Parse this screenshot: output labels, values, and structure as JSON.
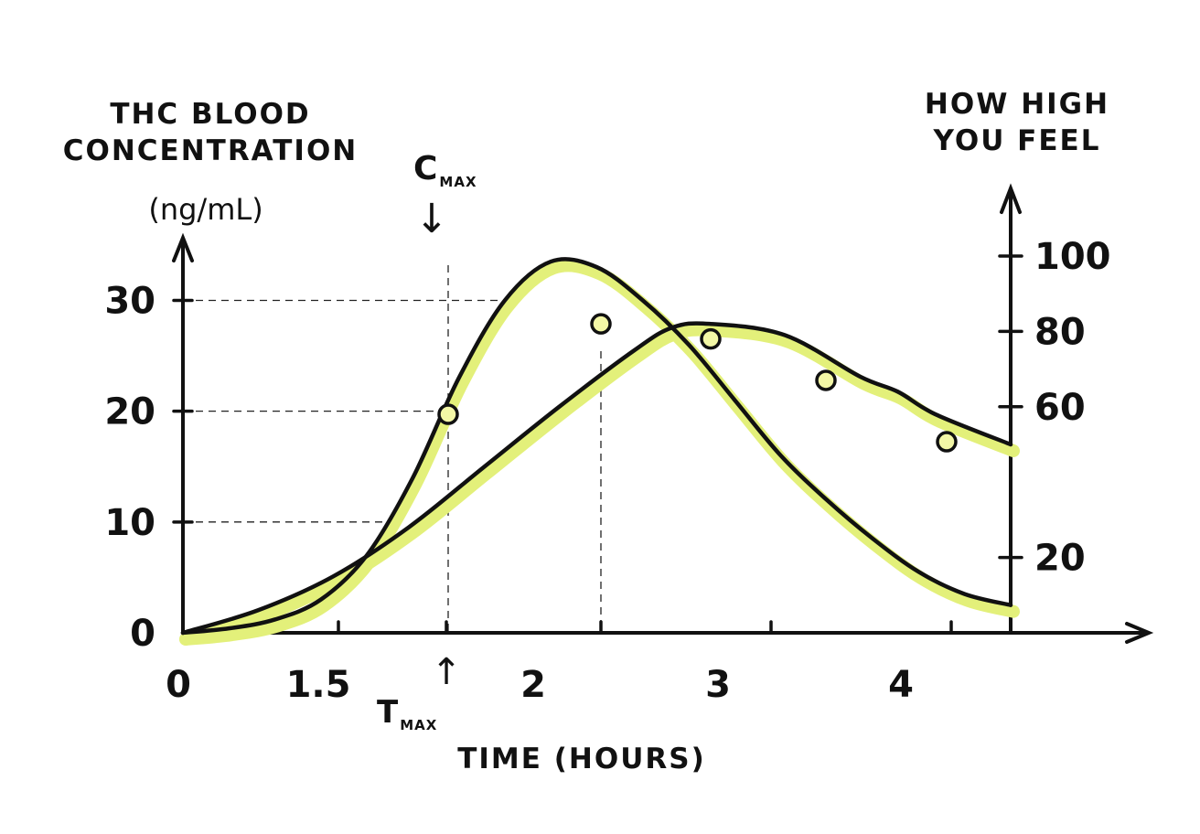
{
  "chart_data": {
    "type": "line",
    "left_axis": {
      "title_lines": [
        "THC BLOOD",
        "CONCENTRATION"
      ],
      "unit": "(ng/mL)",
      "ticks": [
        "0",
        "10",
        "20",
        "30"
      ],
      "tick_values": [
        0,
        10,
        20,
        30
      ],
      "ylim": [
        0,
        34
      ]
    },
    "right_axis": {
      "title_lines": [
        "HOW HIGH",
        "YOU FEEL"
      ],
      "ticks": [
        "20",
        "60",
        "80",
        "100"
      ],
      "tick_values": [
        20,
        60,
        80,
        100
      ],
      "ylim": [
        0,
        100
      ]
    },
    "x_axis": {
      "title": "TIME (HOURS)",
      "tick_labels": [
        "0",
        "1.5",
        "2",
        "3",
        "4"
      ],
      "label_values": [
        0,
        1.5,
        2,
        3,
        4
      ]
    },
    "annotations": {
      "cmax": {
        "main": "C",
        "sub": "MAX"
      },
      "tmax": {
        "main": "T",
        "sub": "MAX"
      },
      "arrow_down": "↓",
      "arrow_up": "↑"
    },
    "series": [
      {
        "axis": "left",
        "x": [
          0,
          0.25,
          0.5,
          0.75,
          1.0,
          1.25,
          1.5,
          1.75,
          2.0,
          2.25,
          2.5,
          2.75,
          3.0,
          3.25,
          3.5,
          3.75,
          4.0,
          4.25,
          4.5
        ],
        "values": [
          0,
          0.4,
          1.2,
          3,
          7,
          14,
          23,
          30,
          33.5,
          33,
          30,
          26,
          21,
          16,
          12,
          8.5,
          5.5,
          3.5,
          2.5
        ]
      },
      {
        "axis": "right",
        "x": [
          0,
          0.5,
          1.0,
          1.5,
          2.0,
          2.5,
          3.0,
          3.25,
          3.5,
          4.0,
          4.5,
          4.75,
          5.0,
          5.5
        ],
        "values": [
          0,
          6,
          15,
          28,
          44,
          60,
          75,
          81,
          82,
          79,
          68,
          64,
          58,
          50
        ],
        "markers_x": [
          2.0,
          3.25,
          4.0,
          5.0
        ]
      }
    ]
  }
}
